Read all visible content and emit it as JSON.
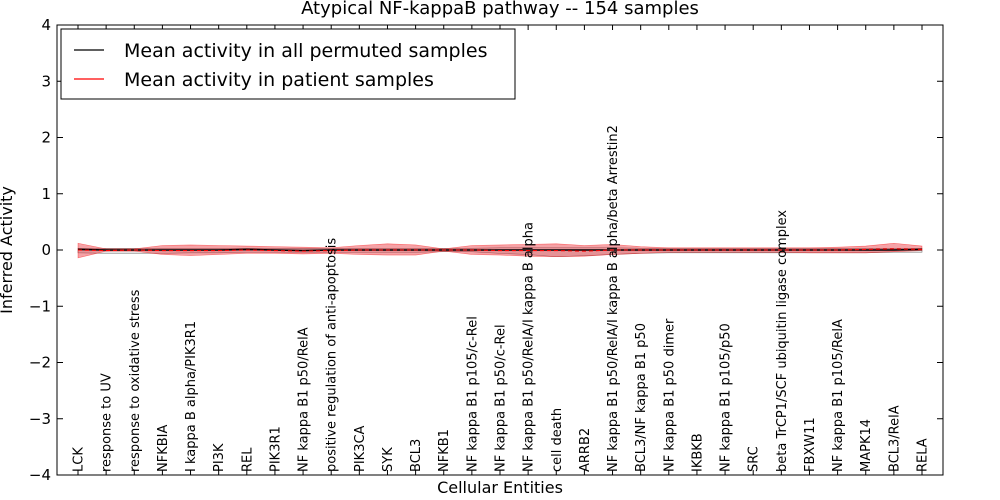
{
  "chart_data": {
    "type": "line",
    "title": "Atypical NF-kappaB pathway -- 154 samples",
    "xlabel": "Cellular Entities",
    "ylabel": "Inferred Activity",
    "ylim": [
      -4,
      4
    ],
    "yticks": [
      -4,
      -3,
      -2,
      -1,
      0,
      1,
      2,
      3,
      4
    ],
    "ytick_labels": [
      "−4",
      "−3",
      "−2",
      "−1",
      "0",
      "1",
      "2",
      "3",
      "4"
    ],
    "legend_position": "upper-left",
    "categories": [
      "LCK",
      "response to UV",
      "response to oxidative stress",
      "NFKBIA",
      "I kappa B alpha/PIK3R1",
      "PI3K",
      "REL",
      "PIK3R1",
      "NF kappa B1 p50/RelA",
      "positive regulation of anti-apoptosis",
      "PIK3CA",
      "SYK",
      "BCL3",
      "NFKB1",
      "NF kappa B1 p105/c-Rel",
      "NF kappa B1 p50/c-Rel",
      "NF kappa B1 p50/RelA/I kappa B alpha",
      "cell death",
      "ARRB2",
      "NF kappa B1 p50/RelA/I kappa B alpha/beta Arrestin2",
      "BCL3/NF kappa B1 p50",
      "NF kappa B1 p50 dimer",
      "IKBKB",
      "NF kappa B1 p105/p50",
      "SRC",
      "beta TrCP1/SCF ubiquitin ligase complex",
      "FBXW11",
      "NF kappa B1 p105/RelA",
      "MAPK14",
      "BCL3/RelA",
      "RELA"
    ],
    "series": [
      {
        "name": "Mean activity in all permuted samples",
        "color": "#000000",
        "style": "solid",
        "values": [
          0.01,
          0.0,
          0.0,
          0.0,
          0.0,
          0.0,
          0.01,
          0.0,
          -0.01,
          0.0,
          0.0,
          0.0,
          0.0,
          0.0,
          0.0,
          0.0,
          0.0,
          0.0,
          0.0,
          0.0,
          0.0,
          0.0,
          0.0,
          0.0,
          0.0,
          0.0,
          0.0,
          0.0,
          0.0,
          0.0,
          0.01
        ],
        "band_upper": [
          0.03,
          0.03,
          0.03,
          0.03,
          0.03,
          0.03,
          0.03,
          0.03,
          0.03,
          0.03,
          0.03,
          0.03,
          0.03,
          0.03,
          0.03,
          0.04,
          0.04,
          0.04,
          0.04,
          0.04,
          0.03,
          0.03,
          0.03,
          0.03,
          0.03,
          0.03,
          0.03,
          0.03,
          0.03,
          0.03,
          0.03
        ],
        "band_lower": [
          -0.05,
          -0.06,
          -0.06,
          -0.06,
          -0.05,
          -0.05,
          -0.04,
          -0.04,
          -0.04,
          -0.04,
          -0.04,
          -0.04,
          -0.04,
          -0.03,
          -0.03,
          -0.06,
          -0.08,
          -0.12,
          -0.1,
          -0.08,
          -0.06,
          -0.05,
          -0.05,
          -0.05,
          -0.05,
          -0.05,
          -0.05,
          -0.05,
          -0.05,
          -0.04,
          -0.04
        ]
      },
      {
        "name": "Mean activity in patient samples",
        "color": "#ff0000",
        "style": "dashed",
        "values": [
          0.0,
          -0.01,
          0.0,
          -0.01,
          -0.01,
          -0.01,
          0.0,
          -0.01,
          -0.02,
          -0.01,
          0.0,
          0.0,
          0.0,
          0.0,
          0.0,
          -0.01,
          -0.01,
          -0.01,
          -0.02,
          0.0,
          0.0,
          0.0,
          0.0,
          0.0,
          0.0,
          0.0,
          0.0,
          0.0,
          0.01,
          0.02,
          0.01
        ],
        "band_upper": [
          0.12,
          0.02,
          0.02,
          0.08,
          0.09,
          0.08,
          0.07,
          0.06,
          0.05,
          0.04,
          0.08,
          0.11,
          0.09,
          0.02,
          0.08,
          0.09,
          0.1,
          0.11,
          0.08,
          0.1,
          0.06,
          0.04,
          0.04,
          0.04,
          0.04,
          0.04,
          0.04,
          0.05,
          0.07,
          0.12,
          0.07
        ],
        "band_lower": [
          -0.14,
          -0.02,
          -0.02,
          -0.08,
          -0.1,
          -0.08,
          -0.06,
          -0.06,
          -0.07,
          -0.06,
          -0.08,
          -0.09,
          -0.09,
          -0.02,
          -0.08,
          -0.09,
          -0.11,
          -0.12,
          -0.11,
          -0.08,
          -0.06,
          -0.04,
          -0.04,
          -0.04,
          -0.04,
          -0.04,
          -0.05,
          -0.05,
          -0.05,
          -0.03,
          -0.01
        ]
      }
    ]
  }
}
